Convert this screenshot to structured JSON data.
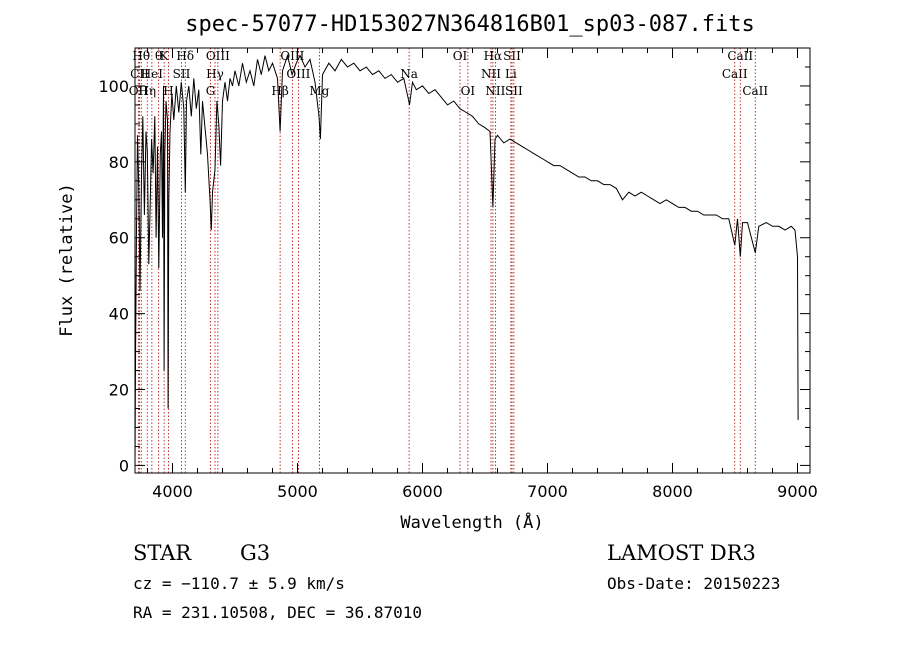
{
  "chart_data": {
    "type": "line",
    "title": "spec-57077-HD153027N364816B01_sp03-087.fits",
    "xlabel": "Wavelength (Å)",
    "ylabel": "Flux (relative)",
    "xlim": [
      3700,
      9100
    ],
    "ylim": [
      -2,
      110
    ],
    "xticks": [
      4000,
      5000,
      6000,
      7000,
      8000,
      9000
    ],
    "yticks": [
      0,
      20,
      40,
      60,
      80,
      100
    ],
    "series": [
      {
        "name": "spectrum",
        "points": [
          [
            3700,
            0
          ],
          [
            3705,
            31
          ],
          [
            3712,
            62
          ],
          [
            3720,
            87
          ],
          [
            3730,
            73
          ],
          [
            3740,
            46
          ],
          [
            3752,
            76
          ],
          [
            3762,
            92
          ],
          [
            3775,
            66
          ],
          [
            3788,
            88
          ],
          [
            3798,
            83
          ],
          [
            3810,
            53
          ],
          [
            3822,
            70
          ],
          [
            3833,
            86
          ],
          [
            3845,
            77
          ],
          [
            3858,
            92
          ],
          [
            3869,
            60
          ],
          [
            3880,
            84
          ],
          [
            3890,
            52
          ],
          [
            3902,
            82
          ],
          [
            3912,
            88
          ],
          [
            3920,
            60
          ],
          [
            3928,
            100
          ],
          [
            3933,
            25
          ],
          [
            3938,
            82
          ],
          [
            3948,
            96
          ],
          [
            3960,
            91
          ],
          [
            3965,
            15
          ],
          [
            3970,
            70
          ],
          [
            3980,
            88
          ],
          [
            3995,
            98
          ],
          [
            4010,
            91
          ],
          [
            4030,
            100
          ],
          [
            4050,
            93
          ],
          [
            4070,
            101
          ],
          [
            4090,
            94
          ],
          [
            4102,
            72
          ],
          [
            4112,
            96
          ],
          [
            4130,
            100
          ],
          [
            4150,
            92
          ],
          [
            4170,
            102
          ],
          [
            4190,
            94
          ],
          [
            4210,
            99
          ],
          [
            4226,
            82
          ],
          [
            4240,
            96
          ],
          [
            4260,
            89
          ],
          [
            4280,
            82
          ],
          [
            4300,
            70
          ],
          [
            4310,
            62
          ],
          [
            4320,
            72
          ],
          [
            4340,
            78
          ],
          [
            4355,
            96
          ],
          [
            4370,
            90
          ],
          [
            4385,
            79
          ],
          [
            4400,
            96
          ],
          [
            4420,
            101
          ],
          [
            4440,
            96
          ],
          [
            4460,
            102
          ],
          [
            4480,
            100
          ],
          [
            4500,
            104
          ],
          [
            4530,
            100
          ],
          [
            4560,
            106
          ],
          [
            4590,
            101
          ],
          [
            4620,
            104
          ],
          [
            4650,
            100
          ],
          [
            4680,
            107
          ],
          [
            4710,
            103
          ],
          [
            4740,
            108
          ],
          [
            4770,
            104
          ],
          [
            4800,
            106
          ],
          [
            4840,
            102
          ],
          [
            4861,
            88
          ],
          [
            4880,
            104
          ],
          [
            4920,
            108
          ],
          [
            4957,
            103
          ],
          [
            4990,
            106
          ],
          [
            5020,
            108
          ],
          [
            5060,
            105
          ],
          [
            5100,
            107
          ],
          [
            5140,
            101
          ],
          [
            5172,
            92
          ],
          [
            5183,
            86
          ],
          [
            5200,
            103
          ],
          [
            5250,
            106
          ],
          [
            5300,
            104
          ],
          [
            5350,
            107
          ],
          [
            5400,
            105
          ],
          [
            5450,
            106
          ],
          [
            5500,
            104
          ],
          [
            5550,
            105
          ],
          [
            5600,
            103
          ],
          [
            5650,
            104
          ],
          [
            5700,
            102
          ],
          [
            5750,
            103
          ],
          [
            5800,
            101
          ],
          [
            5850,
            102
          ],
          [
            5890,
            96
          ],
          [
            5896,
            95
          ],
          [
            5920,
            101
          ],
          [
            5950,
            99
          ],
          [
            6000,
            100
          ],
          [
            6050,
            98
          ],
          [
            6100,
            99
          ],
          [
            6150,
            97
          ],
          [
            6200,
            95
          ],
          [
            6250,
            96
          ],
          [
            6300,
            94
          ],
          [
            6350,
            93
          ],
          [
            6400,
            92
          ],
          [
            6450,
            90
          ],
          [
            6500,
            89
          ],
          [
            6540,
            88
          ],
          [
            6563,
            68
          ],
          [
            6580,
            86
          ],
          [
            6600,
            87
          ],
          [
            6650,
            85
          ],
          [
            6700,
            86
          ],
          [
            6750,
            85
          ],
          [
            6800,
            84
          ],
          [
            6850,
            83
          ],
          [
            6900,
            82
          ],
          [
            6950,
            81
          ],
          [
            7000,
            80
          ],
          [
            7050,
            79
          ],
          [
            7100,
            79
          ],
          [
            7150,
            78
          ],
          [
            7200,
            77
          ],
          [
            7250,
            76
          ],
          [
            7300,
            76
          ],
          [
            7350,
            75
          ],
          [
            7400,
            75
          ],
          [
            7450,
            74
          ],
          [
            7500,
            74
          ],
          [
            7550,
            73
          ],
          [
            7600,
            70
          ],
          [
            7650,
            72
          ],
          [
            7700,
            71
          ],
          [
            7750,
            72
          ],
          [
            7800,
            71
          ],
          [
            7850,
            70
          ],
          [
            7900,
            69
          ],
          [
            7950,
            70
          ],
          [
            8000,
            69
          ],
          [
            8050,
            68
          ],
          [
            8100,
            68
          ],
          [
            8150,
            67
          ],
          [
            8200,
            67
          ],
          [
            8250,
            66
          ],
          [
            8300,
            66
          ],
          [
            8350,
            66
          ],
          [
            8400,
            65
          ],
          [
            8450,
            65
          ],
          [
            8498,
            58
          ],
          [
            8520,
            65
          ],
          [
            8542,
            55
          ],
          [
            8560,
            64
          ],
          [
            8600,
            64
          ],
          [
            8662,
            56
          ],
          [
            8690,
            63
          ],
          [
            8750,
            64
          ],
          [
            8800,
            63
          ],
          [
            8850,
            63
          ],
          [
            8900,
            62
          ],
          [
            8950,
            63
          ],
          [
            8980,
            62
          ],
          [
            9000,
            55
          ],
          [
            9005,
            12
          ]
        ]
      }
    ],
    "line_markers": [
      {
        "w": 3727,
        "label": "OII",
        "row": 2
      },
      {
        "w": 3736,
        "label": "CII",
        "row": 1
      },
      {
        "w": 3750,
        "label": "Hθ",
        "row": 0
      },
      {
        "w": 3798,
        "label": "Hη",
        "row": 2
      },
      {
        "w": 3835,
        "label": "HeI",
        "row": 1
      },
      {
        "w": 3889,
        "label": "θ",
        "row": 0
      },
      {
        "w": 3933,
        "label": "K",
        "row": 0
      },
      {
        "w": 3968,
        "label": "H",
        "row": 2
      },
      {
        "w": 4072,
        "label": "SII",
        "row": 1
      },
      {
        "w": 4102,
        "label": "Hδ",
        "row": 0
      },
      {
        "w": 4304,
        "label": "G",
        "row": 2
      },
      {
        "w": 4340,
        "label": "Hγ",
        "row": 1
      },
      {
        "w": 4363,
        "label": "OIII",
        "row": 0
      },
      {
        "w": 4861,
        "label": "Hβ",
        "row": 2
      },
      {
        "w": 4959,
        "label": "OIII",
        "row": 0
      },
      {
        "w": 5007,
        "label": "OIII",
        "row": 1
      },
      {
        "w": 5175,
        "label": "Mg",
        "row": 2
      },
      {
        "w": 5893,
        "label": "Na",
        "row": 1
      },
      {
        "w": 6300,
        "label": "OI",
        "row": 0
      },
      {
        "w": 6363,
        "label": "OI",
        "row": 2
      },
      {
        "w": 6548,
        "label": "NII",
        "row": 1
      },
      {
        "w": 6563,
        "label": "Hα",
        "row": 0
      },
      {
        "w": 6583,
        "label": "NII",
        "row": 2
      },
      {
        "w": 6707,
        "label": "Li",
        "row": 1
      },
      {
        "w": 6716,
        "label": "SII",
        "row": 0
      },
      {
        "w": 6731,
        "label": "SII",
        "row": 2
      },
      {
        "w": 8498,
        "label": "CaII",
        "row": 1
      },
      {
        "w": 8542,
        "label": "CaII",
        "row": 0
      },
      {
        "w": 8662,
        "label": "CaII",
        "row": 2
      }
    ]
  },
  "info": {
    "object_class": "STAR",
    "subclass": "G3",
    "survey": "LAMOST DR3",
    "cz": "cz = −110.7 ± 5.9 km/s",
    "obs_date": "Obs-Date: 20150223",
    "coords": "RA = 231.10508, DEC =  36.87010"
  }
}
